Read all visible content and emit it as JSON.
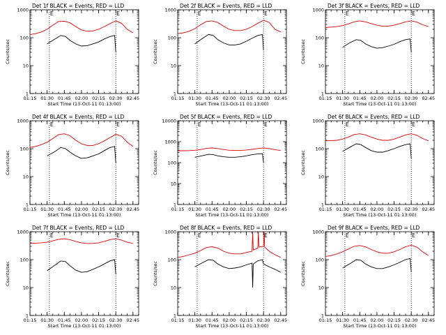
{
  "colors": {
    "events": "#000000",
    "lld": "#e00000",
    "axes": "#000000"
  },
  "chart_data": [
    {
      "type": "line",
      "title": "Det 1f BLACK = Events, RED = LLD",
      "xlabel": "Start Time (13-Oct-11 01:13:00)",
      "ylabel": "Counts/sec",
      "yscale": "log",
      "ylim": [
        1,
        1000
      ],
      "xlim": [
        75,
        170
      ],
      "x_tick_labels": [
        "01:15",
        "01:30",
        "01:45",
        "02:00",
        "02:15",
        "02:30",
        "02:45"
      ],
      "x_ticks": [
        75,
        90,
        105,
        120,
        135,
        150,
        165
      ],
      "y_tick_labels": [
        "1",
        "10",
        "100",
        "1000"
      ],
      "marker_lines": [
        92,
        150
      ],
      "annotation": "E",
      "series": [
        {
          "name": "Events",
          "x": [
            90,
            96,
            102,
            106,
            110,
            115,
            120,
            125,
            130,
            135,
            140,
            145,
            149,
            150
          ],
          "y": [
            60,
            85,
            120,
            110,
            80,
            60,
            50,
            52,
            60,
            70,
            90,
            110,
            120,
            30
          ]
        },
        {
          "name": "LLD",
          "x": [
            75,
            80,
            85,
            90,
            95,
            100,
            105,
            110,
            115,
            120,
            125,
            130,
            135,
            140,
            145,
            150,
            155,
            160,
            165
          ],
          "y": [
            130,
            140,
            160,
            200,
            280,
            380,
            390,
            340,
            250,
            190,
            170,
            175,
            200,
            250,
            320,
            400,
            330,
            200,
            150
          ]
        }
      ]
    },
    {
      "type": "line",
      "title": "Det 2f BLACK = Events, RED = LLD",
      "xlabel": "Start Time (13-Oct-11 01:13:00)",
      "ylabel": "Counts/sec",
      "yscale": "log",
      "ylim": [
        1,
        1000
      ],
      "xlim": [
        75,
        170
      ],
      "x_tick_labels": [
        "01:15",
        "01:30",
        "01:45",
        "02:00",
        "02:15",
        "02:30",
        "02:45"
      ],
      "x_ticks": [
        75,
        90,
        105,
        120,
        135,
        150,
        165
      ],
      "y_tick_labels": [
        "1",
        "10",
        "100",
        "1000"
      ],
      "marker_lines": [
        92,
        150
      ],
      "annotation": "E",
      "series": [
        {
          "name": "Events",
          "x": [
            90,
            96,
            102,
            106,
            110,
            115,
            120,
            125,
            130,
            135,
            140,
            145,
            149,
            150
          ],
          "y": [
            60,
            90,
            130,
            120,
            85,
            65,
            55,
            55,
            60,
            75,
            95,
            120,
            130,
            35
          ]
        },
        {
          "name": "LLD",
          "x": [
            75,
            80,
            85,
            90,
            95,
            100,
            105,
            110,
            115,
            120,
            125,
            130,
            135,
            140,
            145,
            150,
            155,
            160,
            165
          ],
          "y": [
            140,
            150,
            170,
            210,
            290,
            380,
            400,
            350,
            260,
            200,
            180,
            180,
            200,
            250,
            330,
            420,
            350,
            200,
            160
          ]
        }
      ]
    },
    {
      "type": "line",
      "title": "Det 3f BLACK = Events, RED = LLD",
      "xlabel": "Start Time (13-Oct-11 01:13:00)",
      "ylabel": "Counts/sec",
      "yscale": "log",
      "ylim": [
        1,
        1000
      ],
      "xlim": [
        75,
        170
      ],
      "x_tick_labels": [
        "01:15",
        "01:30",
        "01:45",
        "02:00",
        "02:15",
        "02:30",
        "02:45"
      ],
      "x_ticks": [
        75,
        90,
        105,
        120,
        135,
        150,
        165
      ],
      "y_tick_labels": [
        "1",
        "10",
        "100",
        "1000"
      ],
      "marker_lines": [
        92,
        150
      ],
      "annotation": "E",
      "series": [
        {
          "name": "Events",
          "x": [
            90,
            96,
            102,
            106,
            110,
            115,
            120,
            125,
            130,
            135,
            140,
            145,
            149,
            150
          ],
          "y": [
            45,
            65,
            85,
            80,
            60,
            48,
            42,
            44,
            50,
            58,
            72,
            85,
            90,
            30
          ]
        },
        {
          "name": "LLD",
          "x": [
            75,
            80,
            85,
            90,
            95,
            100,
            105,
            110,
            115,
            120,
            125,
            130,
            135,
            140,
            145,
            150,
            155,
            160,
            165
          ],
          "y": [
            230,
            240,
            250,
            270,
            310,
            370,
            400,
            370,
            320,
            280,
            260,
            260,
            280,
            320,
            370,
            400,
            360,
            290,
            250
          ]
        }
      ]
    },
    {
      "type": "line",
      "title": "Det 4f BLACK = Events, RED = LLD",
      "xlabel": "Start Time (13-Oct-11 01:13:00)",
      "ylabel": "Counts/sec",
      "yscale": "log",
      "ylim": [
        1,
        1000
      ],
      "xlim": [
        75,
        170
      ],
      "x_tick_labels": [
        "01:15",
        "01:30",
        "01:45",
        "02:00",
        "02:15",
        "02:30",
        "02:45"
      ],
      "x_ticks": [
        75,
        90,
        105,
        120,
        135,
        150,
        165
      ],
      "y_tick_labels": [
        "1",
        "10",
        "100",
        "1000"
      ],
      "marker_lines": [
        92,
        150
      ],
      "annotation": "E",
      "series": [
        {
          "name": "Events",
          "x": [
            90,
            96,
            102,
            106,
            110,
            115,
            120,
            125,
            130,
            135,
            140,
            145,
            149,
            150
          ],
          "y": [
            55,
            75,
            110,
            100,
            75,
            55,
            45,
            47,
            55,
            65,
            85,
            110,
            120,
            30
          ]
        },
        {
          "name": "LLD",
          "x": [
            75,
            80,
            85,
            90,
            95,
            100,
            105,
            110,
            115,
            120,
            125,
            130,
            135,
            140,
            145,
            150,
            155,
            160,
            165
          ],
          "y": [
            110,
            120,
            140,
            170,
            230,
            320,
            340,
            290,
            200,
            150,
            130,
            130,
            150,
            190,
            250,
            330,
            280,
            170,
            120
          ]
        }
      ]
    },
    {
      "type": "line",
      "title": "Det 5f BLACK = Events, RED = LLD",
      "xlabel": "Start Time (13-Oct-11 01:13:00)",
      "ylabel": "Counts/sec",
      "yscale": "log",
      "ylim": [
        1,
        10000
      ],
      "xlim": [
        75,
        170
      ],
      "x_tick_labels": [
        "01:15",
        "01:30",
        "01:45",
        "02:00",
        "02:15",
        "02:30",
        "02:45"
      ],
      "x_ticks": [
        75,
        90,
        105,
        120,
        135,
        150,
        165
      ],
      "y_tick_labels": [
        "1",
        "10",
        "100",
        "1000",
        "10000"
      ],
      "marker_lines": [
        92,
        150
      ],
      "annotation": "E",
      "series": [
        {
          "name": "Events",
          "x": [
            90,
            96,
            102,
            106,
            110,
            115,
            120,
            125,
            130,
            135,
            140,
            145,
            149,
            150
          ],
          "y": [
            180,
            210,
            250,
            240,
            210,
            190,
            180,
            180,
            190,
            210,
            240,
            260,
            270,
            100
          ]
        },
        {
          "name": "LLD",
          "x": [
            75,
            80,
            85,
            90,
            95,
            100,
            105,
            110,
            115,
            120,
            125,
            130,
            135,
            140,
            145,
            150,
            155,
            160,
            165
          ],
          "y": [
            370,
            370,
            375,
            390,
            420,
            480,
            500,
            470,
            420,
            390,
            380,
            380,
            400,
            430,
            470,
            500,
            470,
            410,
            380
          ]
        }
      ]
    },
    {
      "type": "line",
      "title": "Det 6f BLACK = Events, RED = LLD",
      "xlabel": "Start Time (13-Oct-11 01:13:00)",
      "ylabel": "Counts/sec",
      "yscale": "log",
      "ylim": [
        1,
        1000
      ],
      "xlim": [
        75,
        170
      ],
      "x_tick_labels": [
        "01:15",
        "01:30",
        "01:45",
        "02:00",
        "02:15",
        "02:30",
        "02:45"
      ],
      "x_ticks": [
        75,
        90,
        105,
        120,
        135,
        150,
        165
      ],
      "y_tick_labels": [
        "1",
        "10",
        "100",
        "1000"
      ],
      "marker_lines": [
        92,
        150
      ],
      "annotation": "E",
      "series": [
        {
          "name": "Events",
          "x": [
            90,
            96,
            102,
            106,
            110,
            115,
            120,
            125,
            130,
            135,
            140,
            145,
            149,
            150
          ],
          "y": [
            80,
            110,
            150,
            140,
            110,
            85,
            75,
            75,
            85,
            100,
            120,
            140,
            150,
            45
          ]
        },
        {
          "name": "LLD",
          "x": [
            75,
            80,
            85,
            90,
            95,
            100,
            105,
            110,
            115,
            120,
            125,
            130,
            135,
            140,
            145,
            150,
            155,
            160,
            165
          ],
          "y": [
            190,
            195,
            200,
            220,
            260,
            320,
            340,
            310,
            260,
            220,
            200,
            200,
            220,
            260,
            310,
            340,
            300,
            230,
            190
          ]
        }
      ]
    },
    {
      "type": "line",
      "title": "Det 7f BLACK = Events, RED = LLD",
      "xlabel": "Start Time (13-Oct-11 01:13:00)",
      "ylabel": "Counts/sec",
      "yscale": "log",
      "ylim": [
        1,
        1000
      ],
      "xlim": [
        75,
        170
      ],
      "x_tick_labels": [
        "01:15",
        "01:30",
        "01:45",
        "02:00",
        "02:15",
        "02:30",
        "02:45"
      ],
      "x_ticks": [
        75,
        90,
        105,
        120,
        135,
        150,
        165
      ],
      "y_tick_labels": [
        "1",
        "10",
        "100",
        "1000"
      ],
      "marker_lines": [
        92,
        150
      ],
      "annotation": "E",
      "series": [
        {
          "name": "Events",
          "x": [
            90,
            96,
            102,
            106,
            110,
            115,
            120,
            125,
            130,
            135,
            140,
            145,
            149,
            150
          ],
          "y": [
            40,
            60,
            90,
            85,
            60,
            42,
            35,
            37,
            45,
            55,
            70,
            90,
            100,
            30
          ]
        },
        {
          "name": "LLD",
          "x": [
            75,
            80,
            85,
            90,
            95,
            100,
            105,
            110,
            115,
            120,
            125,
            130,
            135,
            140,
            145,
            150,
            155,
            160,
            165
          ],
          "y": [
            380,
            390,
            400,
            420,
            470,
            530,
            560,
            520,
            450,
            400,
            380,
            380,
            400,
            450,
            520,
            560,
            500,
            420,
            380
          ]
        }
      ]
    },
    {
      "type": "line",
      "title": "Det 8f BLACK = Events, RED = LLD",
      "xlabel": "Start Time (13-Oct-11 01:13:00)",
      "ylabel": "Counts/sec",
      "yscale": "log",
      "ylim": [
        1,
        1000
      ],
      "xlim": [
        75,
        170
      ],
      "x_tick_labels": [
        "01:15",
        "01:30",
        "01:45",
        "02:00",
        "02:15",
        "02:30",
        "02:45"
      ],
      "x_ticks": [
        75,
        90,
        105,
        120,
        135,
        150,
        165
      ],
      "y_tick_labels": [
        "1",
        "10",
        "100",
        "1000"
      ],
      "marker_lines": [
        92,
        150
      ],
      "annotation": "E",
      "series": [
        {
          "name": "Events",
          "x": [
            90,
            96,
            102,
            106,
            110,
            115,
            120,
            125,
            130,
            135,
            140,
            140.5,
            141,
            145,
            149,
            150,
            155,
            160,
            165
          ],
          "y": [
            55,
            75,
            100,
            95,
            70,
            55,
            48,
            50,
            55,
            65,
            75,
            10,
            70,
            90,
            100,
            70,
            55,
            45,
            35
          ]
        },
        {
          "name": "LLD",
          "x": [
            75,
            80,
            85,
            90,
            95,
            100,
            105,
            110,
            115,
            120,
            125,
            130,
            135,
            140,
            140.5,
            141,
            145,
            145.5,
            146,
            150,
            150.5,
            151,
            155,
            160,
            165
          ],
          "y": [
            120,
            130,
            150,
            170,
            210,
            270,
            290,
            260,
            200,
            170,
            160,
            160,
            180,
            200,
            1000,
            220,
            260,
            1000,
            280,
            300,
            1000,
            280,
            200,
            150,
            120
          ]
        }
      ]
    },
    {
      "type": "line",
      "title": "Det 9f BLACK = Events, RED = LLD",
      "xlabel": "Start Time (13-Oct-11 01:13:00)",
      "ylabel": "Counts/sec",
      "yscale": "log",
      "ylim": [
        1,
        1000
      ],
      "xlim": [
        75,
        170
      ],
      "x_tick_labels": [
        "01:15",
        "01:30",
        "01:45",
        "02:00",
        "02:15",
        "02:30",
        "02:45"
      ],
      "x_ticks": [
        75,
        90,
        105,
        120,
        135,
        150,
        165
      ],
      "y_tick_labels": [
        "1",
        "10",
        "100",
        "1000"
      ],
      "marker_lines": [
        92,
        150
      ],
      "annotation": "E",
      "series": [
        {
          "name": "Events",
          "x": [
            90,
            96,
            102,
            106,
            110,
            115,
            120,
            125,
            130,
            135,
            140,
            145,
            149,
            150
          ],
          "y": [
            50,
            70,
            100,
            95,
            70,
            55,
            48,
            48,
            55,
            65,
            80,
            100,
            110,
            35
          ]
        },
        {
          "name": "LLD",
          "x": [
            75,
            80,
            85,
            90,
            95,
            100,
            105,
            110,
            115,
            120,
            125,
            130,
            135,
            140,
            145,
            150,
            155,
            160,
            165
          ],
          "y": [
            130,
            140,
            160,
            190,
            240,
            300,
            320,
            290,
            230,
            190,
            170,
            170,
            190,
            230,
            290,
            330,
            280,
            190,
            140
          ]
        }
      ]
    }
  ]
}
